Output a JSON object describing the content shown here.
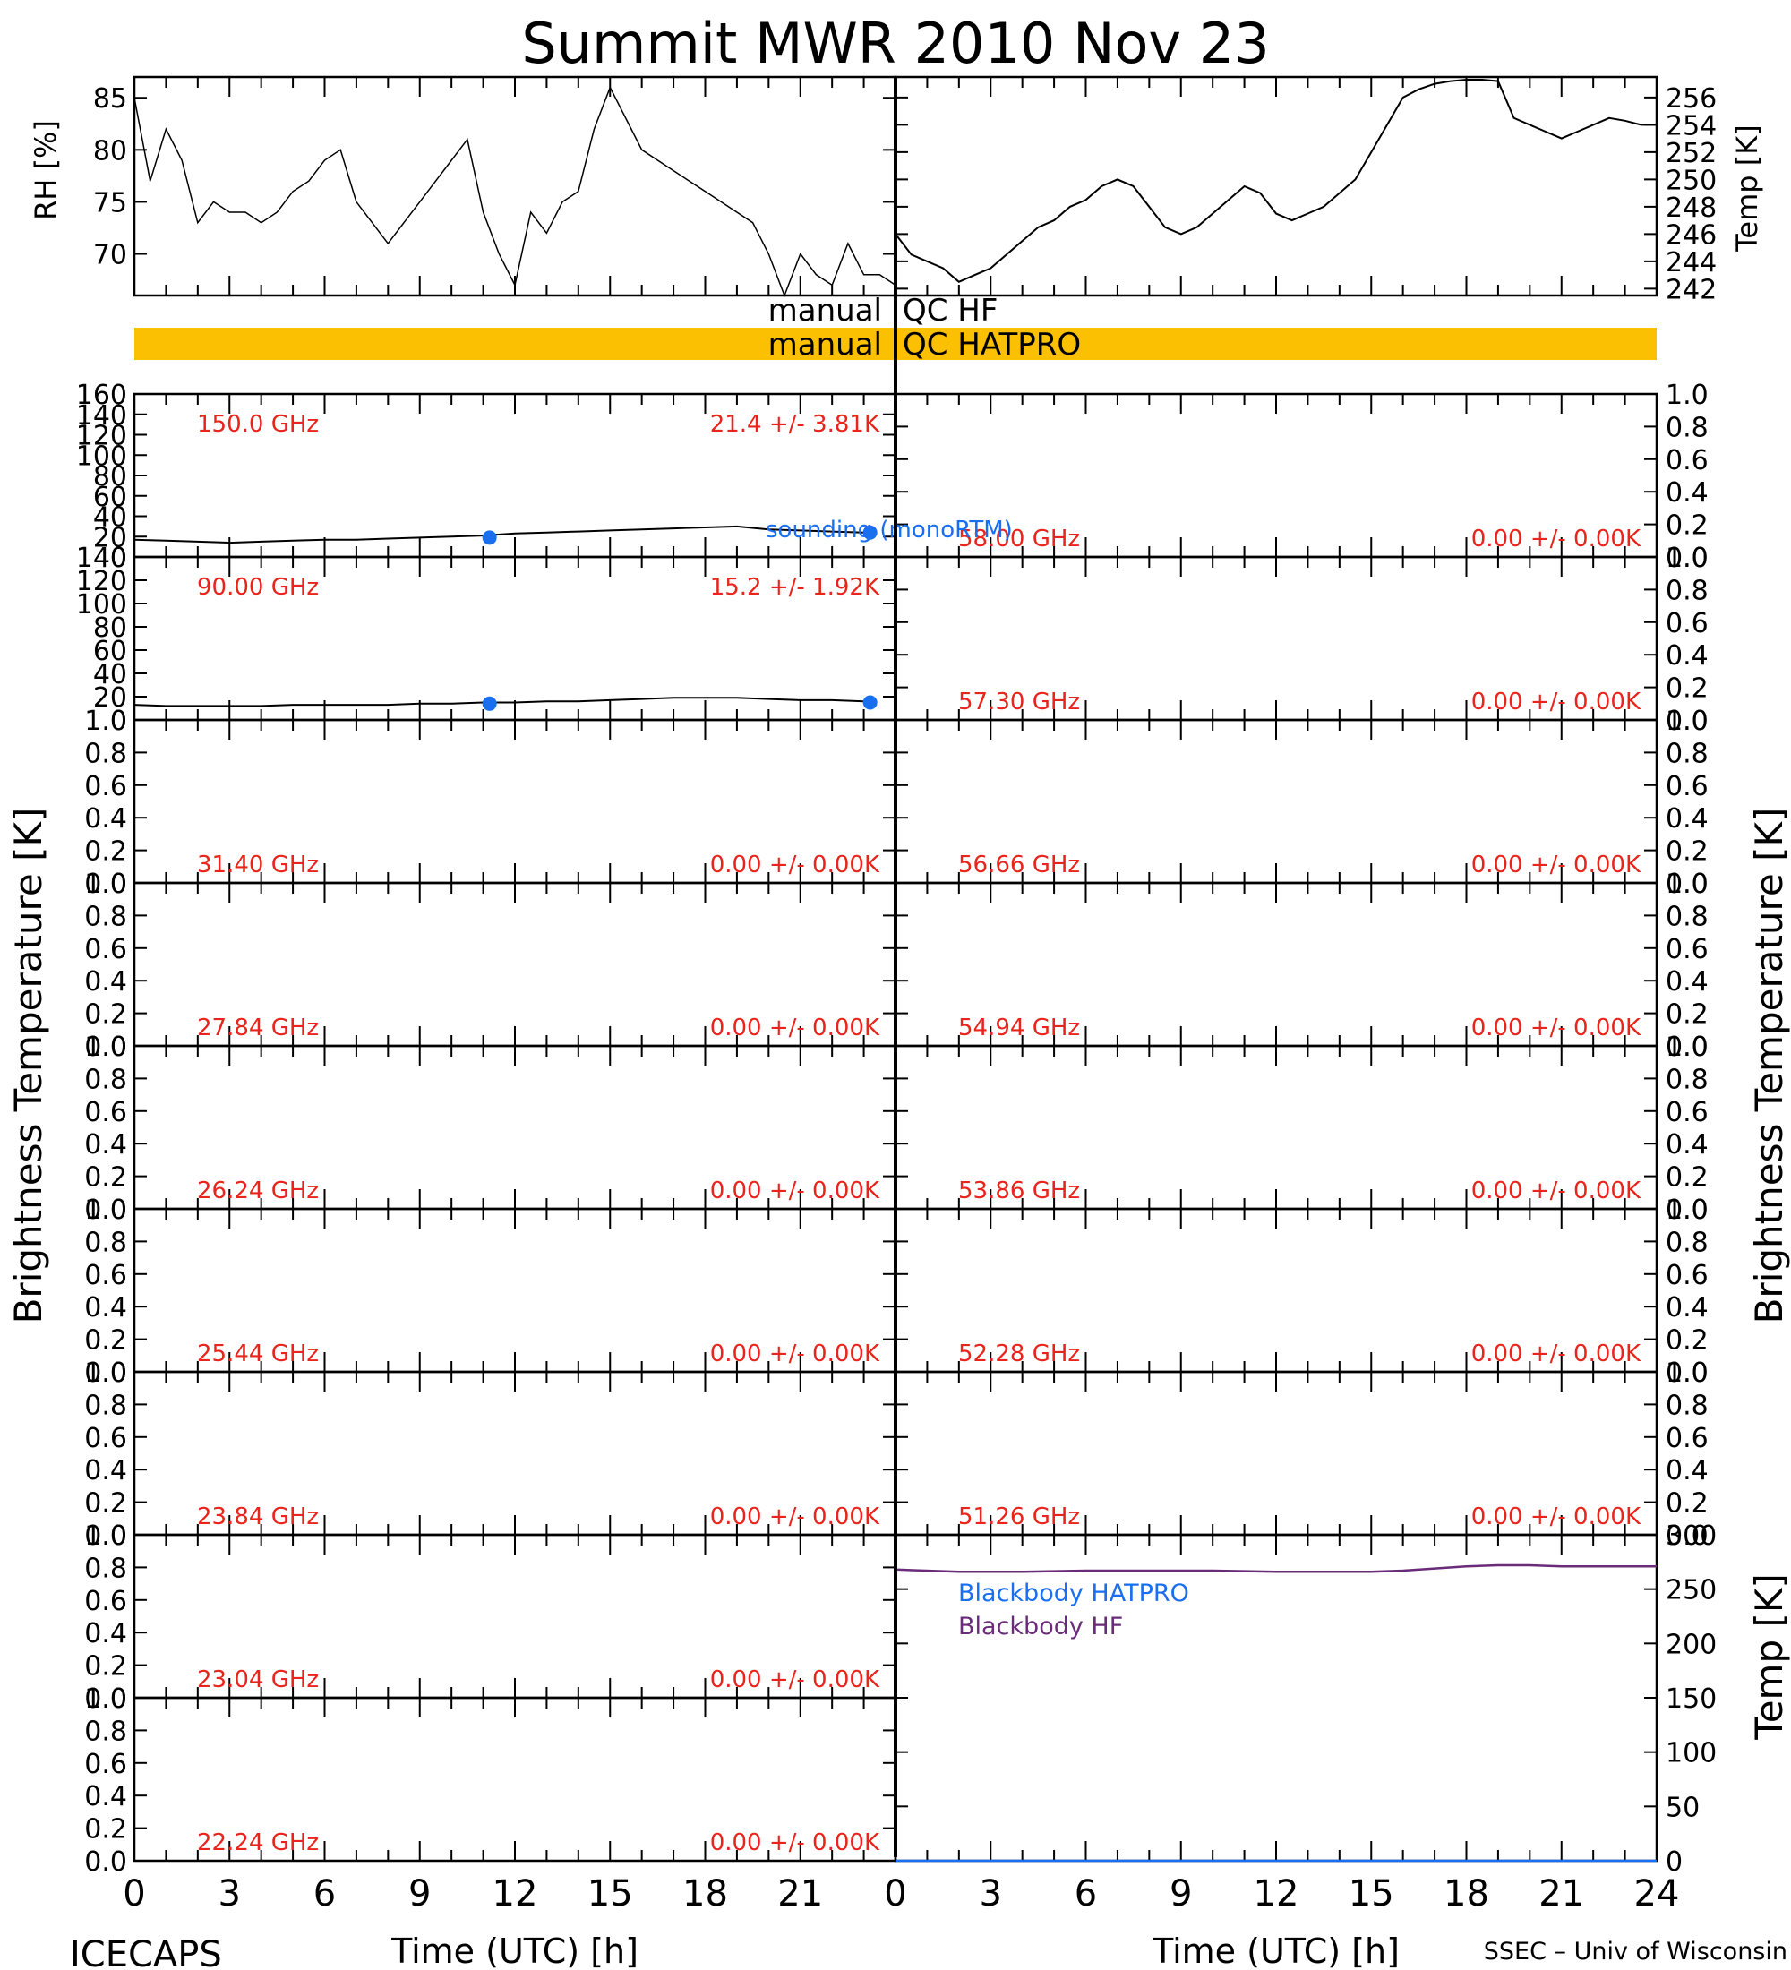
{
  "title": "Summit MWR 2010 Nov 23",
  "left_ylabel": "Brightness Temperature [K]",
  "right_ylabel": "Brightness Temperature [K]",
  "xlabel": "Time (UTC) [h]",
  "footer_left": "ICECAPS",
  "footer_right": "SSEC – Univ of Wisconsin",
  "qc": {
    "hf_word": "manual",
    "hf_label": "QC HF",
    "hatpro_word": "manual",
    "hatpro_label": "QC HATPRO",
    "hatpro_color": "#fbc002"
  },
  "colors": {
    "data_line": "#000000",
    "label_red": "#e8241c",
    "sounding_blue": "#1a6ef0",
    "blackbody_purple": "#6a2c7a",
    "blackbody_blue": "#1a6ef0"
  },
  "chart_data": [
    {
      "id": "rh",
      "type": "line",
      "ylabel": "RH [%]",
      "xlim": [
        0,
        24
      ],
      "ylim": [
        66,
        87
      ],
      "yticks": [
        70,
        75,
        80,
        85
      ],
      "x": [
        0.0,
        0.5,
        1.0,
        1.5,
        2.0,
        2.5,
        3.0,
        3.5,
        4.0,
        4.5,
        5.0,
        5.5,
        6.0,
        6.5,
        7.0,
        7.5,
        8.0,
        8.5,
        9.0,
        9.5,
        10.0,
        10.5,
        11.0,
        11.5,
        12.0,
        12.5,
        13.0,
        13.5,
        14.0,
        14.5,
        15.0,
        15.5,
        16.0,
        16.5,
        17.0,
        17.5,
        18.0,
        18.5,
        19.0,
        19.5,
        20.0,
        20.5,
        21.0,
        21.5,
        22.0,
        22.5,
        23.0,
        23.5,
        24.0
      ],
      "values": [
        85,
        77,
        82,
        79,
        73,
        75,
        74,
        74,
        73,
        74,
        76,
        77,
        79,
        80,
        75,
        73,
        71,
        73,
        75,
        77,
        79,
        81,
        74,
        70,
        67,
        74,
        72,
        75,
        76,
        82,
        86,
        83,
        80,
        79,
        78,
        77,
        76,
        75,
        74,
        73,
        70,
        66,
        70,
        68,
        67,
        71,
        68,
        68,
        67
      ]
    },
    {
      "id": "temp",
      "type": "line",
      "ylabel": "Temp [K]",
      "xlim": [
        0,
        24
      ],
      "ylim": [
        241.5,
        257.5
      ],
      "yticks": [
        242,
        244,
        246,
        248,
        250,
        252,
        254,
        256
      ],
      "x": [
        0.0,
        0.5,
        1.0,
        1.5,
        2.0,
        2.5,
        3.0,
        3.5,
        4.0,
        4.5,
        5.0,
        5.5,
        6.0,
        6.5,
        7.0,
        7.5,
        8.0,
        8.5,
        9.0,
        9.5,
        10.0,
        10.5,
        11.0,
        11.5,
        12.0,
        12.5,
        13.0,
        13.5,
        14.0,
        14.5,
        15.0,
        15.5,
        16.0,
        16.5,
        17.0,
        17.5,
        18.0,
        18.5,
        19.0,
        19.5,
        20.0,
        20.5,
        21.0,
        21.5,
        22.0,
        22.5,
        23.0,
        23.5,
        24.0
      ],
      "values": [
        246,
        244.5,
        244,
        243.5,
        242.5,
        243,
        243.5,
        244.5,
        245.5,
        246.5,
        247,
        248,
        248.5,
        249.5,
        250,
        249.5,
        248,
        246.5,
        246,
        246.5,
        247.5,
        248.5,
        249.5,
        249,
        247.5,
        247,
        247.5,
        248,
        249,
        250,
        252,
        254,
        256,
        256.6,
        257,
        257.2,
        257.3,
        257.3,
        257.2,
        254.5,
        254,
        253.5,
        253,
        253.5,
        254,
        254.5,
        254.3,
        254,
        254
      ]
    },
    {
      "id": "f150",
      "type": "line",
      "label": "150.0 GHz",
      "stats": "21.4 +/-   3.81K",
      "ylim": [
        0,
        160
      ],
      "yticks": [
        0,
        20,
        40,
        60,
        80,
        100,
        120,
        140,
        160
      ],
      "xlim": [
        0,
        24
      ],
      "x": [
        0,
        1,
        2,
        3,
        4,
        5,
        6,
        7,
        8,
        9,
        10,
        11,
        12,
        13,
        14,
        15,
        16,
        17,
        18,
        19,
        20,
        21,
        22,
        23
      ],
      "values": [
        17,
        16,
        15,
        14,
        15,
        16,
        17,
        17,
        18,
        19,
        20,
        21,
        23,
        24,
        25,
        26,
        27,
        28,
        29,
        30,
        27,
        26,
        25,
        24
      ],
      "sounding_x": [
        11.2,
        23.2
      ],
      "sounding_values": [
        19,
        24
      ],
      "sounding_label": "sounding (monoRTM)"
    },
    {
      "id": "f90",
      "type": "line",
      "label": "90.00 GHz",
      "stats": "15.2 +/-   1.92K",
      "ylim": [
        0,
        140
      ],
      "yticks": [
        0,
        20,
        40,
        60,
        80,
        100,
        120,
        140
      ],
      "xlim": [
        0,
        24
      ],
      "x": [
        0,
        1,
        2,
        3,
        4,
        5,
        6,
        7,
        8,
        9,
        10,
        11,
        12,
        13,
        14,
        15,
        16,
        17,
        18,
        19,
        20,
        21,
        22,
        23
      ],
      "values": [
        13,
        12,
        12,
        12,
        12,
        13,
        13,
        13,
        13,
        14,
        14,
        15,
        15,
        16,
        16,
        17,
        18,
        19,
        19,
        19,
        18,
        17,
        17,
        16
      ],
      "sounding_x": [
        11.2,
        23.2
      ],
      "sounding_values": [
        14,
        15
      ]
    },
    {
      "id": "f58",
      "type": "line",
      "label": "58.00 GHz",
      "stats": "0.00 +/-   0.00K",
      "ylim": [
        0,
        1
      ],
      "yticks": [
        0,
        0.2,
        0.4,
        0.6,
        0.8,
        1.0
      ],
      "values": []
    },
    {
      "id": "f5730",
      "type": "line",
      "label": "57.30 GHz",
      "stats": "0.00 +/-   0.00K",
      "ylim": [
        0,
        1
      ],
      "yticks": [
        0,
        0.2,
        0.4,
        0.6,
        0.8,
        1.0
      ],
      "values": []
    },
    {
      "id": "f3140",
      "type": "line",
      "label": "31.40 GHz",
      "stats": "0.00 +/-   0.00K",
      "ylim": [
        0,
        1
      ],
      "yticks": [
        0,
        0.2,
        0.4,
        0.6,
        0.8,
        1.0
      ],
      "values": []
    },
    {
      "id": "f5666",
      "type": "line",
      "label": "56.66 GHz",
      "stats": "0.00 +/-   0.00K",
      "ylim": [
        0,
        1
      ],
      "yticks": [
        0,
        0.2,
        0.4,
        0.6,
        0.8,
        1.0
      ],
      "values": []
    },
    {
      "id": "f2784",
      "type": "line",
      "label": "27.84 GHz",
      "stats": "0.00 +/-   0.00K",
      "ylim": [
        0,
        1
      ],
      "yticks": [
        0,
        0.2,
        0.4,
        0.6,
        0.8,
        1.0
      ],
      "values": []
    },
    {
      "id": "f5494",
      "type": "line",
      "label": "54.94 GHz",
      "stats": "0.00 +/-   0.00K",
      "ylim": [
        0,
        1
      ],
      "yticks": [
        0,
        0.2,
        0.4,
        0.6,
        0.8,
        1.0
      ],
      "values": []
    },
    {
      "id": "f2624",
      "type": "line",
      "label": "26.24 GHz",
      "stats": "0.00 +/-   0.00K",
      "ylim": [
        0,
        1
      ],
      "yticks": [
        0,
        0.2,
        0.4,
        0.6,
        0.8,
        1.0
      ],
      "values": []
    },
    {
      "id": "f5386",
      "type": "line",
      "label": "53.86 GHz",
      "stats": "0.00 +/-   0.00K",
      "ylim": [
        0,
        1
      ],
      "yticks": [
        0,
        0.2,
        0.4,
        0.6,
        0.8,
        1.0
      ],
      "values": []
    },
    {
      "id": "f2544",
      "type": "line",
      "label": "25.44 GHz",
      "stats": "0.00 +/-   0.00K",
      "ylim": [
        0,
        1
      ],
      "yticks": [
        0,
        0.2,
        0.4,
        0.6,
        0.8,
        1.0
      ],
      "values": []
    },
    {
      "id": "f5228",
      "type": "line",
      "label": "52.28 GHz",
      "stats": "0.00 +/-   0.00K",
      "ylim": [
        0,
        1
      ],
      "yticks": [
        0,
        0.2,
        0.4,
        0.6,
        0.8,
        1.0
      ],
      "values": []
    },
    {
      "id": "f2384",
      "type": "line",
      "label": "23.84 GHz",
      "stats": "0.00 +/-   0.00K",
      "ylim": [
        0,
        1
      ],
      "yticks": [
        0,
        0.2,
        0.4,
        0.6,
        0.8,
        1.0
      ],
      "values": []
    },
    {
      "id": "f5126",
      "type": "line",
      "label": "51.26 GHz",
      "stats": "0.00 +/-   0.00K",
      "ylim": [
        0,
        1
      ],
      "yticks": [
        0,
        0.2,
        0.4,
        0.6,
        0.8,
        1.0
      ],
      "values": []
    },
    {
      "id": "f2304",
      "type": "line",
      "label": "23.04 GHz",
      "stats": "0.00 +/-   0.00K",
      "ylim": [
        0,
        1
      ],
      "yticks": [
        0,
        0.2,
        0.4,
        0.6,
        0.8,
        1.0
      ],
      "values": []
    },
    {
      "id": "f2224",
      "type": "line",
      "label": "22.24 GHz",
      "stats": "0.00 +/-   0.00K",
      "ylim": [
        0,
        1
      ],
      "yticks": [
        0,
        0.2,
        0.4,
        0.6,
        0.8,
        1.0
      ],
      "values": []
    },
    {
      "id": "blackbody",
      "type": "line",
      "ylabel": "Temp [K]",
      "ylim": [
        0,
        300
      ],
      "yticks": [
        0,
        50,
        100,
        150,
        200,
        250,
        300
      ],
      "xlim": [
        0,
        24
      ],
      "series": [
        {
          "name": "Blackbody HATPRO",
          "x": [
            0,
            24
          ],
          "values": [
            0,
            0
          ]
        },
        {
          "name": "Blackbody HF",
          "x": [
            0,
            2,
            4,
            6,
            8,
            10,
            12,
            14,
            15,
            16,
            17,
            18,
            19,
            20,
            21,
            22,
            23,
            24
          ],
          "values": [
            268,
            266,
            266,
            267,
            267,
            267,
            266,
            266,
            266,
            267,
            269,
            271,
            272,
            272,
            271,
            271,
            271,
            271
          ]
        }
      ]
    }
  ],
  "xaxis": {
    "ticks": [
      0,
      3,
      6,
      9,
      12,
      15,
      18,
      21
    ],
    "ticks_right": [
      0,
      3,
      6,
      9,
      12,
      15,
      18,
      21,
      24
    ]
  }
}
